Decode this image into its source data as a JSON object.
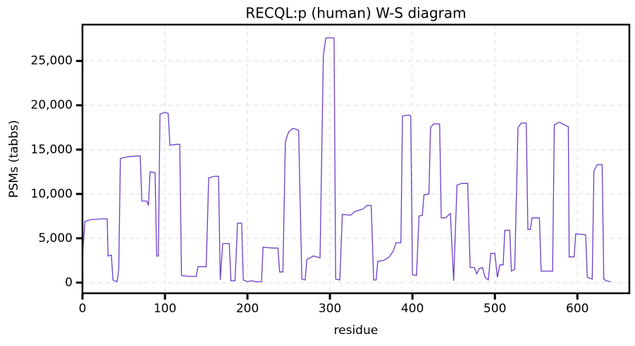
{
  "chart_data": {
    "type": "line",
    "title": "RECQL:p (human) W-S diagram",
    "xlabel": "residue",
    "ylabel": "PSMs (tabbs)",
    "x": [
      0,
      3,
      10,
      25,
      30,
      31,
      35,
      37,
      42,
      44,
      46,
      55,
      70,
      72,
      78,
      80,
      82,
      88,
      90,
      92,
      94,
      100,
      104,
      106,
      115,
      118,
      120,
      130,
      138,
      140,
      150,
      153,
      160,
      165,
      167,
      170,
      178,
      180,
      185,
      188,
      193,
      195,
      200,
      205,
      210,
      217,
      219,
      230,
      237,
      239,
      243,
      246,
      250,
      255,
      262,
      266,
      270,
      272,
      280,
      288,
      292,
      295,
      305,
      307,
      312,
      315,
      325,
      330,
      340,
      345,
      350,
      353,
      356,
      358,
      365,
      372,
      377,
      380,
      386,
      388,
      396,
      398,
      400,
      405,
      408,
      412,
      414,
      420,
      422,
      426,
      433,
      435,
      440,
      446,
      450,
      454,
      460,
      467,
      470,
      475,
      478,
      481,
      485,
      488,
      492,
      495,
      500,
      503,
      506,
      510,
      512,
      518,
      520,
      524,
      528,
      532,
      538,
      540,
      543,
      545,
      550,
      554,
      556,
      565,
      570,
      572,
      578,
      584,
      589,
      590,
      596,
      598,
      610,
      612,
      618,
      620,
      624,
      630,
      632,
      635,
      640
    ],
    "series": [
      {
        "name": "RECQL:p",
        "color": "#6a3dc8",
        "values": [
          3000,
          6900,
          7100,
          7200,
          7200,
          3000,
          3100,
          300,
          100,
          1500,
          14000,
          14200,
          14300,
          9200,
          9200,
          8700,
          12500,
          12400,
          3000,
          3000,
          19000,
          19200,
          19100,
          15500,
          15600,
          15600,
          800,
          700,
          700,
          1800,
          1800,
          11800,
          12000,
          12000,
          300,
          4400,
          4400,
          200,
          200,
          6700,
          6700,
          300,
          100,
          200,
          100,
          100,
          4000,
          3900,
          3900,
          1200,
          1200,
          15900,
          17000,
          17400,
          17200,
          400,
          300,
          2600,
          3000,
          2800,
          25600,
          27600,
          27600,
          400,
          300,
          7700,
          7600,
          8000,
          8300,
          8700,
          8700,
          300,
          300,
          2400,
          2500,
          2900,
          3600,
          4500,
          4500,
          18800,
          18900,
          18800,
          900,
          800,
          7500,
          7600,
          9900,
          10000,
          17500,
          17900,
          17900,
          7300,
          7300,
          7800,
          200,
          11000,
          11200,
          11200,
          1700,
          1700,
          1000,
          1600,
          1700,
          600,
          300,
          3300,
          3300,
          600,
          2000,
          2000,
          5900,
          5900,
          1300,
          1500,
          17500,
          18000,
          18000,
          6000,
          6000,
          7300,
          7300,
          7300,
          1300,
          1300,
          1300,
          17800,
          18100,
          17800,
          17600,
          2900,
          2900,
          5500,
          5400,
          600,
          400,
          12600,
          13300,
          13300,
          400,
          200,
          100
        ]
      }
    ],
    "xlim": [
      0,
      663
    ],
    "ylim": [
      -1200,
      29100
    ],
    "xticks": [
      0,
      100,
      200,
      300,
      400,
      500,
      600
    ],
    "yticks": [
      0,
      {
        "value": 5000,
        "label": "5,000"
      },
      {
        "value": 10000,
        "label": "10,000"
      },
      {
        "value": 15000,
        "label": "15,000"
      },
      {
        "value": 20000,
        "label": "20,000"
      },
      {
        "value": 25000,
        "label": "25,000"
      }
    ],
    "grid": true
  }
}
